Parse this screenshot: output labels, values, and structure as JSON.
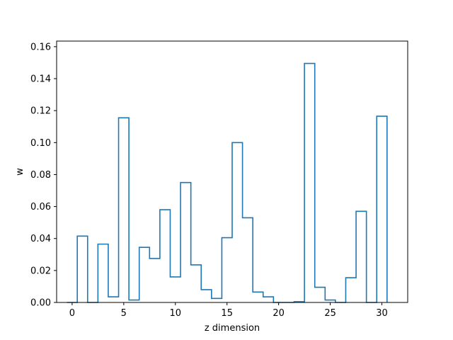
{
  "chart_data": {
    "type": "bar",
    "style": "step-histogram",
    "xlabel": "z dimension",
    "ylabel": "w",
    "xlim": [
      -1.5,
      32.5
    ],
    "ylim": [
      0,
      0.1635
    ],
    "xticks": [
      0,
      5,
      10,
      15,
      20,
      25,
      30
    ],
    "xtick_labels": [
      "0",
      "5",
      "10",
      "15",
      "20",
      "25",
      "30"
    ],
    "yticks": [
      0.0,
      0.02,
      0.04,
      0.06,
      0.08,
      0.1,
      0.12,
      0.14,
      0.16
    ],
    "ytick_labels": [
      "0.00",
      "0.02",
      "0.04",
      "0.06",
      "0.08",
      "0.10",
      "0.12",
      "0.14",
      "0.16"
    ],
    "bin_width": 1,
    "x": [
      0,
      1,
      2,
      3,
      4,
      5,
      6,
      7,
      8,
      9,
      10,
      11,
      12,
      13,
      14,
      15,
      16,
      17,
      18,
      19,
      20,
      21,
      22,
      23,
      24,
      25,
      26,
      27,
      28,
      29,
      30
    ],
    "values": [
      0.0,
      0.0415,
      0.0,
      0.0365,
      0.0035,
      0.1155,
      0.0015,
      0.0345,
      0.0275,
      0.058,
      0.016,
      0.075,
      0.0235,
      0.008,
      0.0025,
      0.0405,
      0.1,
      0.053,
      0.0065,
      0.0035,
      0.0,
      0.0,
      0.0005,
      0.1495,
      0.0095,
      0.0015,
      0.0,
      0.0155,
      0.057,
      0.0,
      0.1165
    ],
    "line_color": "#1f77b4",
    "grid": false,
    "legend": "none"
  }
}
